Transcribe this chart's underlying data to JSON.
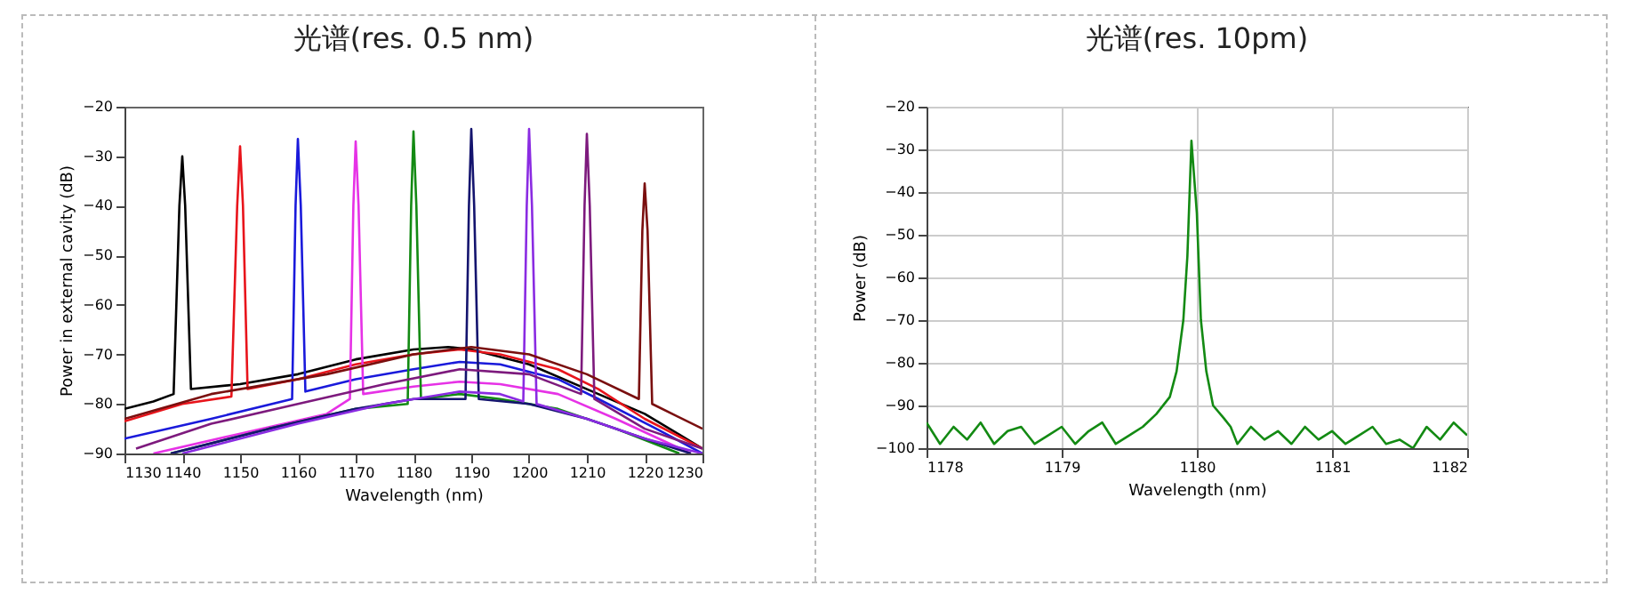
{
  "chart_data": [
    {
      "type": "line",
      "title": "光谱(res. 0.5 nm)",
      "xlabel": "Wavelength (nm)",
      "ylabel": "Power in external cavity (dB)",
      "xlim": [
        1130,
        1230
      ],
      "ylim": [
        -90,
        -20
      ],
      "xticks": [
        1130,
        1140,
        1150,
        1160,
        1170,
        1180,
        1190,
        1200,
        1210,
        1220,
        1230
      ],
      "yticks": [
        -90,
        -80,
        -70,
        -60,
        -50,
        -40,
        -30,
        -20
      ],
      "grid": false,
      "legend": false,
      "series": [
        {
          "color": "#000000",
          "x": [
            1130,
            1135,
            1138.5,
            1139.5,
            1140,
            1140.5,
            1141.5,
            1150,
            1160,
            1170,
            1180,
            1186,
            1190,
            1200,
            1210,
            1220,
            1230
          ],
          "values": [
            -81,
            -79.5,
            -78,
            -40,
            -30,
            -40,
            -77,
            -76,
            -74,
            -71,
            -69,
            -68.5,
            -69,
            -72,
            -77,
            -82,
            -89
          ]
        },
        {
          "color": "#e8141b",
          "x": [
            1130,
            1140,
            1148.5,
            1149.5,
            1150,
            1150.5,
            1151.3,
            1160,
            1170,
            1180,
            1188,
            1195,
            1205,
            1212,
            1220,
            1230
          ],
          "values": [
            -83.5,
            -80,
            -78.5,
            -40,
            -28,
            -40,
            -77,
            -75,
            -72,
            -70,
            -69,
            -70,
            -73,
            -77,
            -83,
            -89
          ]
        },
        {
          "color": "#1a1adb",
          "x": [
            1130,
            1145,
            1159,
            1159.6,
            1160,
            1160.5,
            1161.3,
            1170,
            1180,
            1188,
            1195,
            1205,
            1212,
            1222,
            1230
          ],
          "values": [
            -87,
            -83,
            -79,
            -40,
            -26.5,
            -40,
            -77.5,
            -75,
            -73,
            -71.5,
            -72,
            -75,
            -79,
            -85,
            -90
          ]
        },
        {
          "color": "#e632e6",
          "x": [
            1135,
            1150,
            1165,
            1169,
            1169.6,
            1170,
            1170.5,
            1171.3,
            1180,
            1188,
            1195,
            1205,
            1215,
            1228
          ],
          "values": [
            -90,
            -86,
            -82,
            -79,
            -40,
            -27,
            -40,
            -78,
            -76.5,
            -75.5,
            -76,
            -78,
            -83,
            -90
          ]
        },
        {
          "color": "#138a13",
          "x": [
            1138,
            1155,
            1170,
            1179,
            1179.6,
            1180,
            1180.5,
            1181.3,
            1188,
            1195,
            1205,
            1215,
            1226
          ],
          "values": [
            -90,
            -85,
            -81,
            -80,
            -40,
            -25,
            -40,
            -79,
            -78,
            -79,
            -81,
            -85,
            -90
          ]
        },
        {
          "color": "#14146e",
          "x": [
            1138,
            1155,
            1170,
            1180,
            1189,
            1189.6,
            1190,
            1190.5,
            1191.3,
            1200,
            1210,
            1220,
            1228
          ],
          "values": [
            -90,
            -85,
            -81,
            -79,
            -79,
            -40,
            -24.5,
            -40,
            -79,
            -80,
            -83,
            -87,
            -90
          ]
        },
        {
          "color": "#8a2be2",
          "x": [
            1140,
            1160,
            1175,
            1188,
            1195,
            1199,
            1199.6,
            1200,
            1200.5,
            1201.3,
            1210,
            1220,
            1230
          ],
          "values": [
            -90,
            -84,
            -80,
            -77.5,
            -78,
            -79.5,
            -40,
            -24.5,
            -40,
            -80,
            -83,
            -87,
            -90
          ]
        },
        {
          "color": "#7d1a7d",
          "x": [
            1132,
            1145,
            1160,
            1175,
            1188,
            1200,
            1209,
            1209.6,
            1210,
            1210.5,
            1211.3,
            1220,
            1230
          ],
          "values": [
            -89,
            -84,
            -80,
            -76,
            -73,
            -74,
            -78,
            -40,
            -25.5,
            -40,
            -79,
            -85,
            -89
          ]
        },
        {
          "color": "#7a0f0f",
          "x": [
            1130,
            1145,
            1165,
            1180,
            1190,
            1200,
            1210,
            1219,
            1219.6,
            1220,
            1220.5,
            1221.3,
            1230
          ],
          "values": [
            -83,
            -78,
            -74,
            -70,
            -68.5,
            -70,
            -74,
            -79,
            -45,
            -35.5,
            -45,
            -80,
            -85
          ]
        }
      ]
    },
    {
      "type": "line",
      "title": "光谱(res. 10pm)",
      "xlabel": "Wavelength (nm)",
      "ylabel": "Power (dB)",
      "xlim": [
        1178,
        1182
      ],
      "ylim": [
        -100,
        -20
      ],
      "xticks": [
        1178,
        1179,
        1180,
        1181,
        1182
      ],
      "yticks": [
        -100,
        -90,
        -80,
        -70,
        -60,
        -50,
        -40,
        -30,
        -20
      ],
      "grid": true,
      "legend": false,
      "series": [
        {
          "color": "#138a13",
          "x": [
            1178,
            1178.1,
            1178.2,
            1178.3,
            1178.4,
            1178.5,
            1178.6,
            1178.7,
            1178.8,
            1178.9,
            1179,
            1179.1,
            1179.2,
            1179.3,
            1179.4,
            1179.5,
            1179.6,
            1179.7,
            1179.8,
            1179.85,
            1179.9,
            1179.93,
            1179.96,
            1180,
            1180.03,
            1180.07,
            1180.12,
            1180.2,
            1180.25,
            1180.3,
            1180.4,
            1180.5,
            1180.6,
            1180.7,
            1180.8,
            1180.9,
            1181,
            1181.1,
            1181.2,
            1181.3,
            1181.4,
            1181.5,
            1181.6,
            1181.7,
            1181.8,
            1181.9,
            1182
          ],
          "values": [
            -94,
            -99,
            -95,
            -98,
            -94,
            -99,
            -96,
            -95,
            -99,
            -97,
            -95,
            -99,
            -96,
            -94,
            -99,
            -97,
            -95,
            -92,
            -88,
            -82,
            -70,
            -55,
            -28,
            -45,
            -70,
            -82,
            -90,
            -93,
            -95,
            -99,
            -95,
            -98,
            -96,
            -99,
            -95,
            -98,
            -96,
            -99,
            -97,
            -95,
            -99,
            -98,
            -100,
            -95,
            -98,
            -94,
            -97
          ]
        }
      ]
    }
  ]
}
